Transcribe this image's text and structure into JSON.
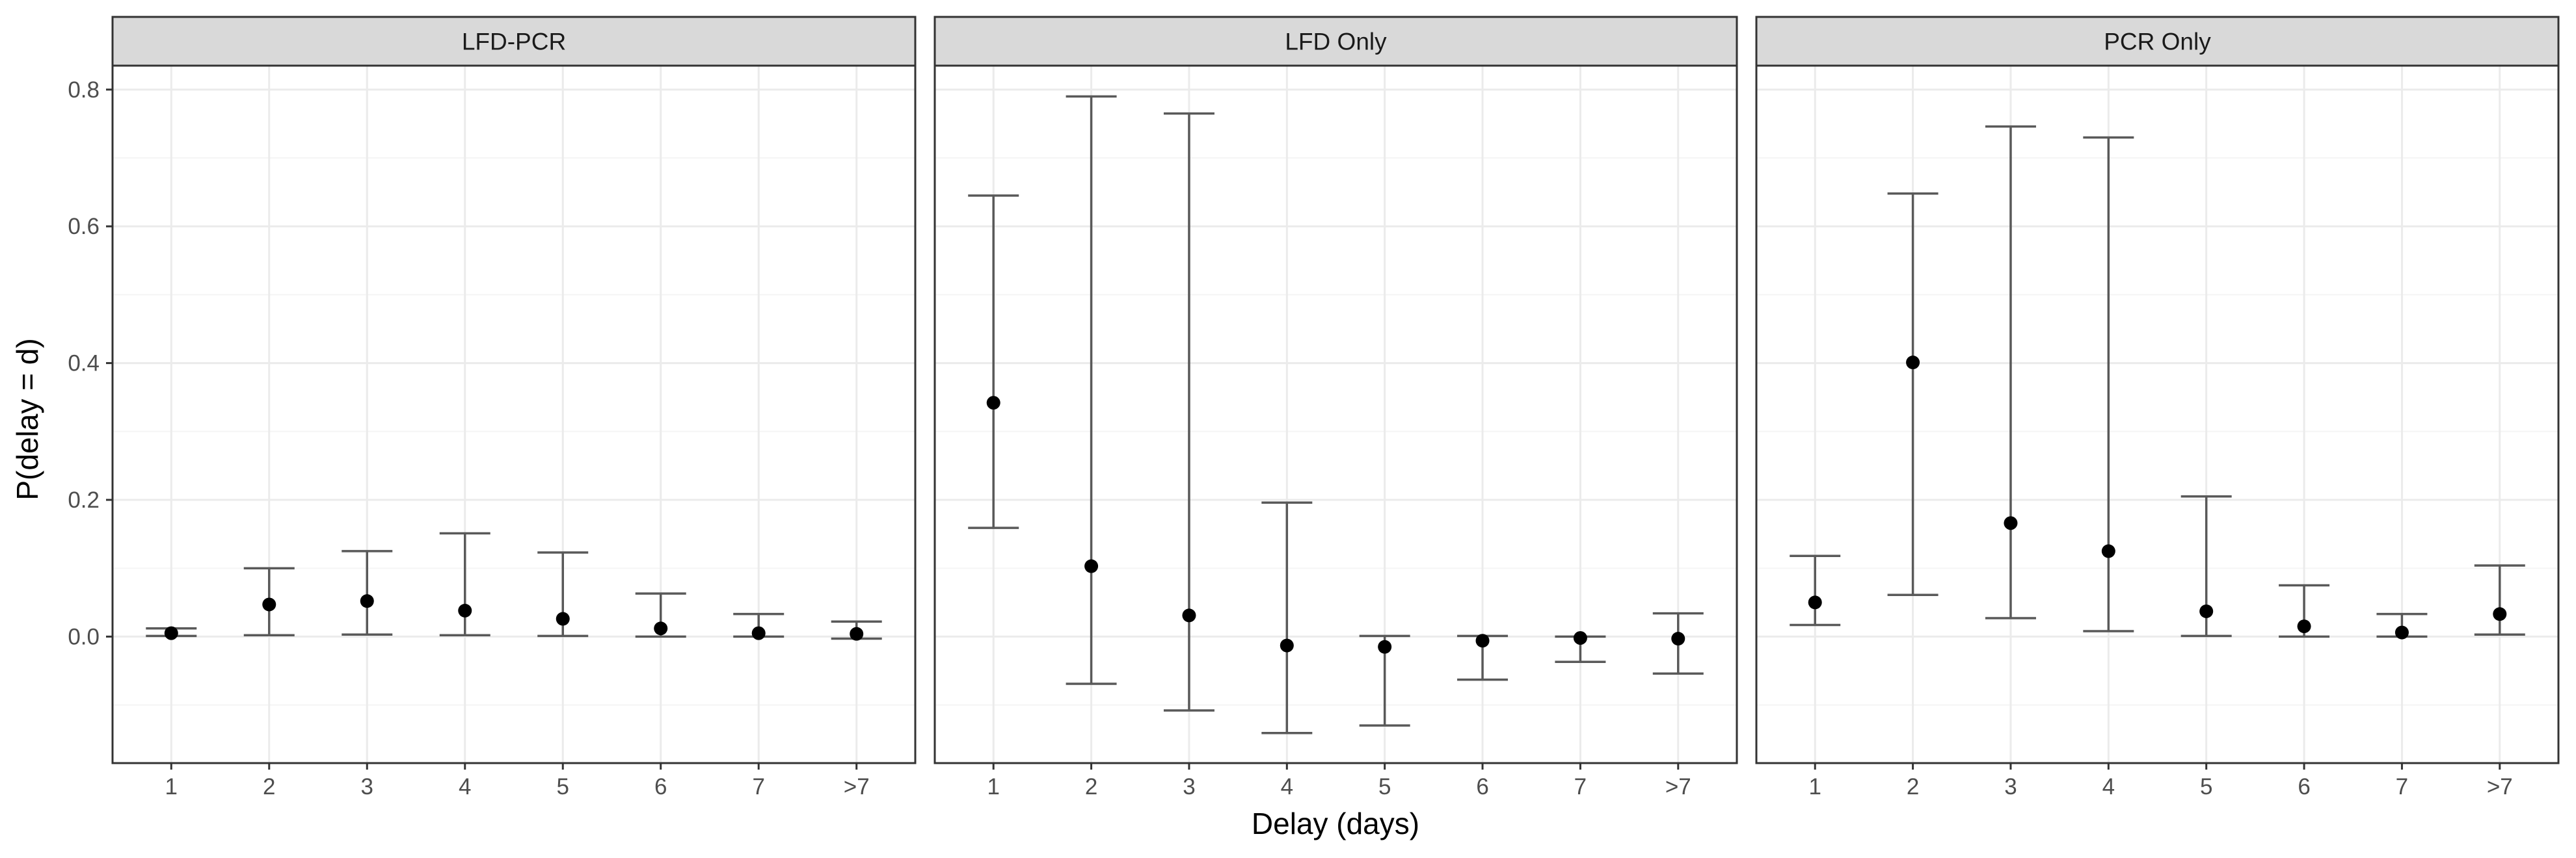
{
  "chart_data": {
    "type": "scatter",
    "subtype": "point-with-errorbars, faceted",
    "xlabel": "Delay (days)",
    "ylabel": "P(delay = d)",
    "categories": [
      "1",
      "2",
      "3",
      "4",
      "5",
      "6",
      "7",
      ">7"
    ],
    "ylim": [
      -0.185,
      0.835
    ],
    "yticks": [
      0.0,
      0.2,
      0.4,
      0.6,
      0.8
    ],
    "ytick_labels": [
      "0.0",
      "0.2",
      "0.4",
      "0.6",
      "0.8"
    ],
    "grid": true,
    "legend": "none",
    "colors": {
      "point": "#000000",
      "errorbar": "#595959",
      "strip_fill": "#d9d9d9",
      "panel_border": "#333333",
      "grid_major": "#ebebeb",
      "grid_minor": "#f5f5f5"
    },
    "facets": [
      {
        "title": "LFD-PCR",
        "values": [
          0.005,
          0.047,
          0.052,
          0.038,
          0.026,
          0.012,
          0.005,
          0.004
        ],
        "lower": [
          0.001,
          0.002,
          0.003,
          0.002,
          0.001,
          0.0,
          0.0,
          -0.003
        ],
        "upper": [
          0.012,
          0.1,
          0.125,
          0.151,
          0.123,
          0.063,
          0.033,
          0.022
        ]
      },
      {
        "title": "LFD Only",
        "values": [
          0.342,
          0.103,
          0.031,
          -0.013,
          -0.015,
          -0.006,
          -0.002,
          -0.003
        ],
        "lower": [
          0.159,
          -0.069,
          -0.108,
          -0.141,
          -0.13,
          -0.063,
          -0.037,
          -0.054
        ],
        "upper": [
          0.645,
          0.79,
          0.765,
          0.196,
          0.001,
          0.001,
          0.0,
          0.034
        ]
      },
      {
        "title": "PCR Only",
        "values": [
          0.05,
          0.401,
          0.166,
          0.125,
          0.037,
          0.015,
          0.006,
          0.033
        ],
        "lower": [
          0.017,
          0.061,
          0.027,
          0.008,
          0.001,
          0.0,
          0.0,
          0.003
        ],
        "upper": [
          0.118,
          0.648,
          0.746,
          0.73,
          0.205,
          0.075,
          0.033,
          0.104
        ]
      }
    ]
  }
}
